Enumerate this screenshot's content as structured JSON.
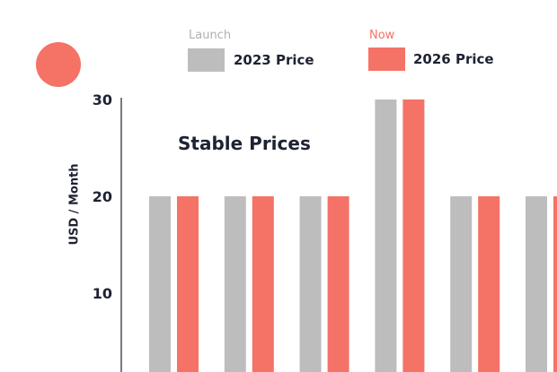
{
  "chart_data": {
    "type": "bar",
    "title": "Stable Prices",
    "ylabel": "USD / Month",
    "xlabel": "",
    "ylim": [
      0,
      30
    ],
    "y_ticks": [
      10,
      20,
      30
    ],
    "categories": [
      "",
      "",
      "",
      "",
      "",
      ""
    ],
    "series": [
      {
        "name": "2023 Price",
        "legend_caption": "Launch",
        "color": "#bdbdbd",
        "values": [
          20,
          20,
          20,
          30,
          20,
          20
        ]
      },
      {
        "name": "2026 Price",
        "legend_caption": "Now",
        "color": "#f57266",
        "values": [
          20,
          20,
          20,
          30,
          20,
          20
        ]
      }
    ],
    "legend_placement": "top",
    "grid": false
  },
  "colors": {
    "accent": "#f57266",
    "gray": "#bdbdbd",
    "caption_gray": "#b0b0b0",
    "text": "#1e2232"
  },
  "decorations": {
    "dot_icon": "coral-circle-icon"
  }
}
